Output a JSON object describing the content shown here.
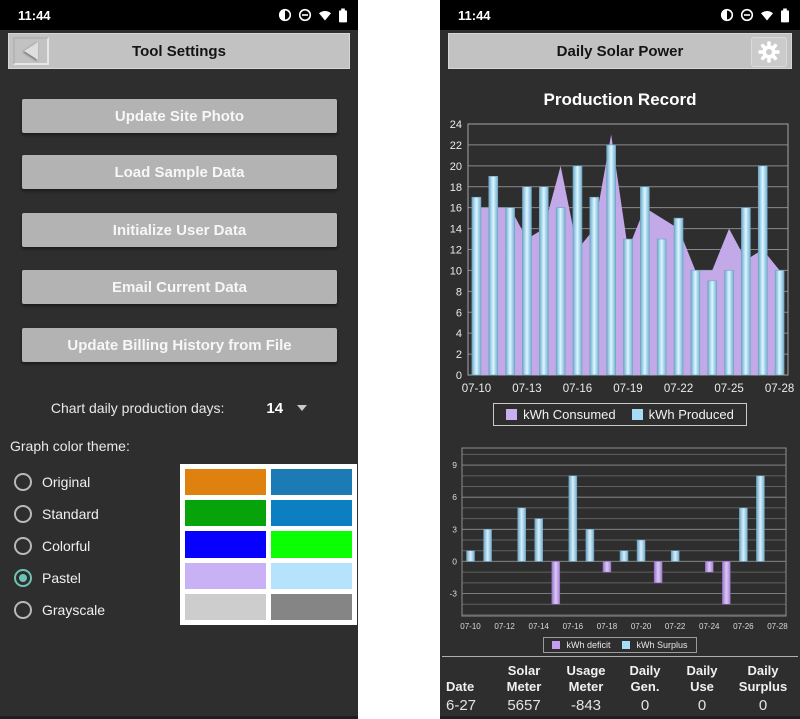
{
  "left_screen": {
    "status_time": "11:44",
    "header_title": "Tool Settings",
    "buttons": [
      "Update Site Photo",
      "Load Sample Data",
      "Initialize User Data",
      "Email Current Data",
      "Update Billing History from File"
    ],
    "days_label": "Chart daily production days:",
    "days_value": "14",
    "theme_label": "Graph color theme:",
    "theme_options": [
      {
        "label": "Original",
        "selected": false
      },
      {
        "label": "Standard",
        "selected": false
      },
      {
        "label": "Colorful",
        "selected": false
      },
      {
        "label": "Pastel",
        "selected": true
      },
      {
        "label": "Grayscale",
        "selected": false
      }
    ],
    "theme_swatches": [
      "#de810e",
      "#1c7ab5",
      "#07a30a",
      "#0c7fc2",
      "#0800ff",
      "#0aff05",
      "#c9b1f6",
      "#b5e3fb",
      "#cdcdcd",
      "#858585"
    ],
    "accent_color": "#6fc2b5"
  },
  "right_screen": {
    "status_time": "11:44",
    "header_title": "Daily Solar Power",
    "chart_title": "Production Record",
    "table": {
      "headers": [
        "Date",
        "Solar Meter",
        "Usage Meter",
        "Daily Gen.",
        "Daily Use",
        "Daily Surplus"
      ],
      "values": [
        "6-27",
        "5657",
        "-843",
        "0",
        "0",
        "0"
      ]
    }
  },
  "chart_data": [
    {
      "type": "bar",
      "title": "Production Record",
      "x": [
        "07-10",
        "07-11",
        "07-12",
        "07-13",
        "07-14",
        "07-15",
        "07-16",
        "07-17",
        "07-18",
        "07-19",
        "07-20",
        "07-21",
        "07-22",
        "07-23",
        "07-24",
        "07-25",
        "07-26",
        "07-27",
        "07-28"
      ],
      "x_tick_labels": [
        "07-10",
        "07-13",
        "07-16",
        "07-19",
        "07-22",
        "07-25",
        "07-28"
      ],
      "series": [
        {
          "name": "kWh Consumed",
          "type": "area",
          "color": "#c3a9e8",
          "values": [
            16,
            16,
            16,
            13,
            14,
            20,
            12,
            14,
            23,
            12,
            16,
            15,
            14,
            10,
            10,
            14,
            11,
            12,
            10
          ]
        },
        {
          "name": "kWh Produced",
          "type": "bar",
          "color": "#a6dcf5",
          "values": [
            17,
            19,
            16,
            18,
            18,
            16,
            20,
            17,
            22,
            13,
            18,
            13,
            15,
            10,
            9,
            10,
            16,
            20,
            10
          ]
        }
      ],
      "ylim": [
        0,
        24
      ],
      "ytick_step": 2,
      "grid": true,
      "legend_position": "bottom",
      "legend": [
        {
          "label": "kWh Consumed",
          "color": "#c9aef0"
        },
        {
          "label": "kWh Produced",
          "color": "#a6dcf5"
        }
      ]
    },
    {
      "type": "bar",
      "x": [
        "07-10",
        "07-11",
        "07-12",
        "07-13",
        "07-14",
        "07-15",
        "07-16",
        "07-17",
        "07-18",
        "07-19",
        "07-20",
        "07-21",
        "07-22",
        "07-23",
        "07-24",
        "07-25",
        "07-26",
        "07-27",
        "07-28"
      ],
      "x_tick_labels": [
        "07-10",
        "07-12",
        "07-14",
        "07-16",
        "07-18",
        "07-20",
        "07-22",
        "07-24",
        "07-26",
        "07-28"
      ],
      "series": [
        {
          "name": "kWh Surplus / deficit",
          "values": [
            1,
            3,
            0,
            5,
            4,
            -4,
            8,
            3,
            -1,
            1,
            2,
            -2,
            1,
            0,
            -1,
            -4,
            5,
            8,
            0
          ],
          "positive_color": "#a6dcf5",
          "negative_color": "#c49df0"
        }
      ],
      "ylim": [
        -5.1,
        10.6
      ],
      "yticks": [
        -3,
        0,
        3,
        6,
        9
      ],
      "grid_step": 1,
      "grid": true,
      "legend_position": "bottom",
      "legend": [
        {
          "label": "kWh deficit",
          "color": "#c49df0"
        },
        {
          "label": "kWh Surplus",
          "color": "#a6dcf5"
        }
      ]
    }
  ]
}
